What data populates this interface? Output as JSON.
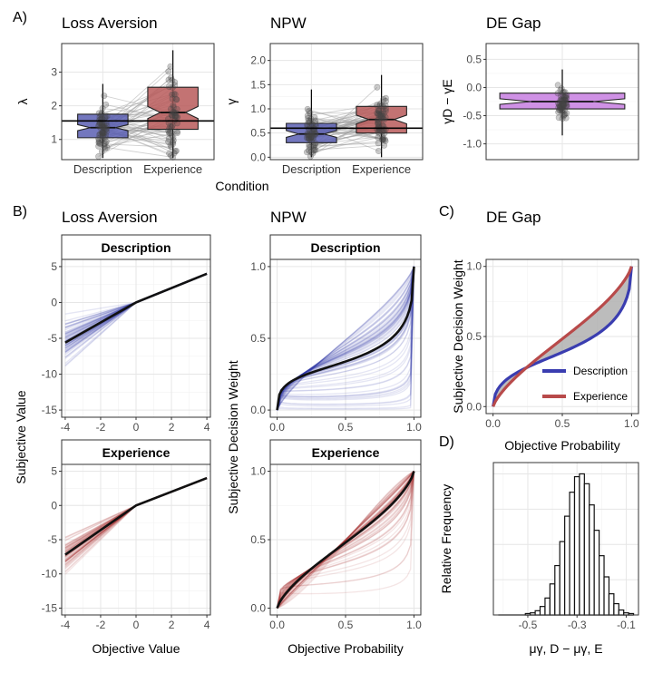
{
  "panel_letters": [
    "A)",
    "B)",
    "C)",
    "D)"
  ],
  "chart_data": [
    {
      "id": "A1",
      "type": "boxplot",
      "title": "Loss Aversion",
      "ylabel": "λ",
      "xlabel": "",
      "categories": [
        "Description",
        "Experience"
      ],
      "ylim": [
        0.4,
        3.85
      ],
      "yticks": [
        1,
        2,
        3
      ],
      "boxes": [
        {
          "category": "Description",
          "q1": 1.05,
          "median": 1.35,
          "q3": 1.75,
          "notch_lo": 1.26,
          "notch_hi": 1.44,
          "whisker_lo": 0.45,
          "whisker_hi": 2.65,
          "color": "#5b5fb3"
        },
        {
          "category": "Experience",
          "q1": 1.3,
          "median": 1.8,
          "q3": 2.55,
          "notch_lo": 1.62,
          "notch_hi": 1.98,
          "whisker_lo": 0.45,
          "whisker_hi": 3.65,
          "color": "#b85a5a"
        }
      ],
      "hline": 1.55
    },
    {
      "id": "A2",
      "type": "boxplot",
      "title": "NPW",
      "ylabel": "γ",
      "xlabel": "",
      "categories": [
        "Description",
        "Experience"
      ],
      "ylim": [
        -0.05,
        2.35
      ],
      "yticks": [
        0.0,
        0.5,
        1.0,
        1.5,
        2.0
      ],
      "boxes": [
        {
          "category": "Description",
          "q1": 0.3,
          "median": 0.48,
          "q3": 0.7,
          "notch_lo": 0.41,
          "notch_hi": 0.55,
          "whisker_lo": 0.0,
          "whisker_hi": 1.4,
          "color": "#5b5fb3"
        },
        {
          "category": "Experience",
          "q1": 0.5,
          "median": 0.78,
          "q3": 1.05,
          "notch_lo": 0.69,
          "notch_hi": 0.87,
          "whisker_lo": 0.0,
          "whisker_hi": 1.7,
          "color": "#b85a5a"
        }
      ],
      "hline": 0.6
    },
    {
      "id": "A3",
      "type": "boxplot",
      "title": "DE Gap",
      "ylabel": "γD − γE",
      "xlabel": "",
      "categories": [
        ""
      ],
      "ylim": [
        -1.28,
        0.78
      ],
      "yticks": [
        -1.0,
        -0.5,
        0.0,
        0.5
      ],
      "boxes": [
        {
          "category": "",
          "q1": -0.38,
          "median": -0.25,
          "q3": -0.1,
          "notch_lo": -0.3,
          "notch_hi": -0.2,
          "whisker_lo": -0.85,
          "whisker_hi": 0.32,
          "color": "#c77ee0"
        }
      ]
    },
    {
      "id": "B1",
      "type": "line",
      "title": "Loss Aversion",
      "strip": "Description",
      "ylabel": "Subjective Value",
      "xlim": [
        -4.2,
        4.2
      ],
      "ylim": [
        -16,
        6
      ],
      "xticks": [
        -4,
        -2,
        0,
        2,
        4
      ],
      "yticks": [
        -15,
        -10,
        -5,
        0,
        5
      ],
      "color": "#2b2fa8",
      "mean_line": {
        "x": [
          -4,
          0,
          4
        ],
        "y": [
          -5.6,
          0,
          4
        ]
      }
    },
    {
      "id": "B2",
      "type": "line",
      "title": "Loss Aversion",
      "strip": "Experience",
      "xlabel": "Objective Value",
      "xlim": [
        -4.2,
        4.2
      ],
      "ylim": [
        -16,
        6
      ],
      "xticks": [
        -4,
        -2,
        0,
        2,
        4
      ],
      "yticks": [
        -15,
        -10,
        -5,
        0,
        5
      ],
      "color": "#a52a2a",
      "mean_line": {
        "x": [
          -4,
          0,
          4
        ],
        "y": [
          -7.2,
          0,
          4
        ]
      }
    },
    {
      "id": "B3",
      "type": "line",
      "title": "NPW",
      "strip": "Description",
      "ylabel": "Subjective Decision Weight",
      "xlim": [
        -0.05,
        1.05
      ],
      "ylim": [
        -0.05,
        1.05
      ],
      "xticks": [
        0.0,
        0.5,
        1.0
      ],
      "yticks": [
        0.0,
        0.5,
        1.0
      ],
      "color": "#2b2fa8",
      "mean_gamma": 0.48
    },
    {
      "id": "B4",
      "type": "line",
      "title": "NPW",
      "strip": "Experience",
      "xlabel": "Objective Probability",
      "xlim": [
        -0.05,
        1.05
      ],
      "ylim": [
        -0.05,
        1.05
      ],
      "xticks": [
        0.0,
        0.5,
        1.0
      ],
      "yticks": [
        0.0,
        0.5,
        1.0
      ],
      "color": "#a52a2a",
      "mean_gamma": 0.78
    },
    {
      "id": "C",
      "type": "line",
      "title": "DE Gap",
      "xlabel": "Objective Probability",
      "ylabel": "Subjective Decision Weight",
      "xlim": [
        -0.05,
        1.05
      ],
      "ylim": [
        -0.05,
        1.05
      ],
      "xticks": [
        0.0,
        0.5,
        1.0
      ],
      "yticks": [
        0.0,
        0.5,
        1.0
      ],
      "series": [
        {
          "name": "Description",
          "color": "#3a3db0",
          "gamma": 0.55
        },
        {
          "name": "Experience",
          "color": "#b84a4a",
          "gamma": 0.8
        }
      ],
      "legend_position": "bottom-right"
    },
    {
      "id": "D",
      "type": "histogram",
      "xlabel": "μγ, D − μγ, E",
      "ylabel": "Relative Frequency",
      "xlim": [
        -0.64,
        -0.05
      ],
      "xticks": [
        -0.5,
        -0.3,
        -0.1
      ],
      "bin_width": 0.02,
      "bin_starts": [
        -0.51,
        -0.49,
        -0.47,
        -0.45,
        -0.43,
        -0.41,
        -0.39,
        -0.37,
        -0.35,
        -0.33,
        -0.31,
        -0.29,
        -0.27,
        -0.25,
        -0.23,
        -0.21,
        -0.19,
        -0.17,
        -0.15,
        -0.13,
        -0.11,
        -0.09
      ],
      "frequencies": [
        0.01,
        0.015,
        0.03,
        0.06,
        0.12,
        0.22,
        0.35,
        0.52,
        0.7,
        0.87,
        0.98,
        1.0,
        0.93,
        0.78,
        0.6,
        0.42,
        0.27,
        0.15,
        0.08,
        0.035,
        0.015,
        0.01
      ]
    }
  ]
}
